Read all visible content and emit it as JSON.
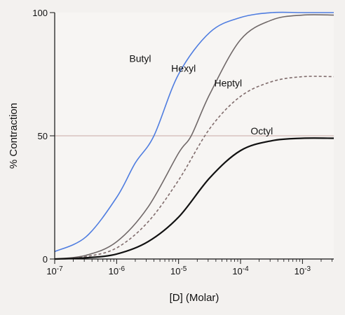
{
  "chart_data": {
    "type": "line",
    "xlabel": "[D] (Molar)",
    "ylabel": "% Contraction",
    "xscale": "log",
    "xlim": [
      1e-07,
      0.0032
    ],
    "ylim": [
      0,
      100
    ],
    "x_ticks": [
      {
        "label": "10-7",
        "value": 1e-07
      },
      {
        "label": "10-6",
        "value": 1e-06
      },
      {
        "label": "10-5",
        "value": 1e-05
      },
      {
        "label": "10-4",
        "value": 0.0001
      },
      {
        "label": "10-3",
        "value": 0.001
      }
    ],
    "y_ticks": [
      {
        "label": "0",
        "value": 0
      },
      {
        "label": "50",
        "value": 50
      },
      {
        "label": "100",
        "value": 100
      }
    ],
    "reference_line": {
      "y": 50,
      "color": "#c9a9a4"
    },
    "series": [
      {
        "name": "Butyl",
        "color": "#4f7de0",
        "dashed": false,
        "x": [
          1e-07,
          3.2e-07,
          1e-06,
          2e-06,
          4e-06,
          1e-05,
          3.2e-05,
          0.0001,
          0.00032,
          0.001,
          0.0032
        ],
        "y": [
          3,
          9,
          25,
          39,
          50,
          75,
          92,
          98,
          100,
          100,
          100
        ]
      },
      {
        "name": "Hexyl",
        "color": "#706868",
        "dashed": false,
        "x": [
          1e-07,
          3.2e-07,
          1e-06,
          3.2e-06,
          1e-05,
          1.6e-05,
          3.2e-05,
          0.0001,
          0.00032,
          0.001,
          0.0032
        ],
        "y": [
          0,
          1.5,
          7,
          21,
          43,
          50,
          67,
          89,
          97,
          99,
          99
        ]
      },
      {
        "name": "Heptyl",
        "color": "#806c6c",
        "dashed": true,
        "x": [
          1e-07,
          3.2e-07,
          1e-06,
          3.2e-06,
          1e-05,
          3.2e-05,
          0.0001,
          0.00032,
          0.001,
          0.0032
        ],
        "y": [
          0,
          1,
          4.5,
          15,
          32,
          53,
          66,
          72,
          74,
          74
        ]
      },
      {
        "name": "Octyl",
        "color": "#111111",
        "dashed": false,
        "x": [
          1e-07,
          3.2e-07,
          1e-06,
          3.2e-06,
          1e-05,
          3.2e-05,
          0.0001,
          0.00032,
          0.001,
          0.0032
        ],
        "y": [
          0,
          0.5,
          2,
          7,
          17,
          33,
          44,
          48,
          49,
          49
        ]
      }
    ],
    "annotations": [
      {
        "text": "Butyl",
        "series": "Butyl",
        "x": 2.4e-06,
        "y": 80
      },
      {
        "text": "Hexyl",
        "series": "Hexyl",
        "x": 1.2e-05,
        "y": 76
      },
      {
        "text": "Heptyl",
        "series": "Heptyl",
        "x": 6.3e-05,
        "y": 70
      },
      {
        "text": "Octyl",
        "series": "Octyl",
        "x": 0.00022,
        "y": 50.5
      }
    ],
    "grid": false
  }
}
